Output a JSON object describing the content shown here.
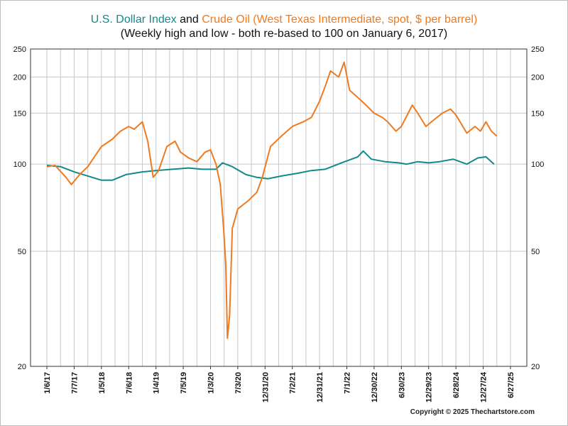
{
  "header": {
    "title_part1": "U.S. Dollar Index",
    "title_joiner": " and ",
    "title_part2": "Crude Oil (West Texas Intermediate, spot, $ per barrel)",
    "subtitle": "(Weekly high and low - both re-based to 100 on January 6, 2017)"
  },
  "footer": {
    "copyright": "Copyright © 2025 Thechartstore.com"
  },
  "colors": {
    "dollar": "#138a8a",
    "oil": "#f07a1f",
    "grid": "#c8c8c8",
    "axis": "#333333"
  },
  "chart_data": {
    "type": "line",
    "yscale": "log",
    "ylim": [
      20,
      250
    ],
    "y_ticks": [
      20,
      50,
      100,
      150,
      200,
      250
    ],
    "y_tick_labels": [
      "20",
      "50",
      "100",
      "150",
      "200",
      "250"
    ],
    "x_tick_labels": [
      "1/6/17",
      "7/7/17",
      "1/5/18",
      "7/6/18",
      "1/4/19",
      "7/5/19",
      "1/3/20",
      "7/3/20",
      "12/31/20",
      "7/2/21",
      "12/31/21",
      "7/1/22",
      "12/30/22",
      "6/30/23",
      "12/29/23",
      "6/28/24",
      "12/27/24",
      "6/27/25"
    ],
    "x_ticks": [
      2017.0,
      2017.5,
      2018.0,
      2018.5,
      2019.0,
      2019.5,
      2020.0,
      2020.5,
      2021.0,
      2021.5,
      2022.0,
      2022.5,
      2023.0,
      2023.5,
      2024.0,
      2024.5,
      2025.0,
      2025.5
    ],
    "xlim": [
      2016.7,
      2025.8
    ],
    "series": [
      {
        "name": "U.S. Dollar Index",
        "x": [
          2017.0,
          2017.25,
          2017.5,
          2017.75,
          2018.0,
          2018.2,
          2018.45,
          2018.75,
          2019.0,
          2019.3,
          2019.6,
          2019.85,
          2020.1,
          2020.22,
          2020.4,
          2020.65,
          2020.85,
          2021.05,
          2021.3,
          2021.6,
          2021.85,
          2022.1,
          2022.4,
          2022.7,
          2022.8,
          2022.95,
          2023.2,
          2023.45,
          2023.6,
          2023.8,
          2024.0,
          2024.2,
          2024.45,
          2024.7,
          2024.9,
          2025.05,
          2025.2
        ],
        "values": [
          99,
          98,
          94,
          91,
          88,
          88,
          92,
          94,
          95,
          96,
          97,
          96,
          96,
          101,
          98,
          92,
          90,
          89,
          91,
          93,
          95,
          96,
          101,
          106,
          111,
          104,
          102,
          101,
          100,
          102,
          101,
          102,
          104,
          100,
          105,
          106,
          100
        ]
      },
      {
        "name": "Crude Oil (West Texas Intermediate, spot, $ per barrel)",
        "x": [
          2017.0,
          2017.15,
          2017.35,
          2017.45,
          2017.6,
          2017.75,
          2017.9,
          2018.0,
          2018.2,
          2018.35,
          2018.5,
          2018.6,
          2018.75,
          2018.85,
          2018.95,
          2019.05,
          2019.2,
          2019.35,
          2019.45,
          2019.6,
          2019.75,
          2019.9,
          2020.0,
          2020.1,
          2020.18,
          2020.24,
          2020.28,
          2020.31,
          2020.35,
          2020.4,
          2020.5,
          2020.7,
          2020.85,
          2020.95,
          2021.1,
          2021.3,
          2021.5,
          2021.7,
          2021.85,
          2022.0,
          2022.1,
          2022.2,
          2022.35,
          2022.45,
          2022.55,
          2022.7,
          2022.85,
          2023.0,
          2023.15,
          2023.25,
          2023.4,
          2023.5,
          2023.7,
          2023.8,
          2023.95,
          2024.05,
          2024.25,
          2024.4,
          2024.5,
          2024.7,
          2024.85,
          2024.95,
          2025.05,
          2025.15,
          2025.25
        ],
        "values": [
          98,
          99,
          90,
          85,
          92,
          98,
          108,
          115,
          122,
          130,
          135,
          132,
          140,
          120,
          90,
          95,
          115,
          120,
          110,
          105,
          102,
          110,
          112,
          100,
          85,
          60,
          45,
          25,
          30,
          60,
          70,
          75,
          80,
          90,
          115,
          125,
          135,
          140,
          145,
          165,
          185,
          210,
          200,
          225,
          180,
          170,
          160,
          150,
          145,
          140,
          130,
          135,
          160,
          150,
          135,
          140,
          150,
          155,
          148,
          128,
          135,
          130,
          140,
          130,
          125
        ]
      }
    ]
  }
}
